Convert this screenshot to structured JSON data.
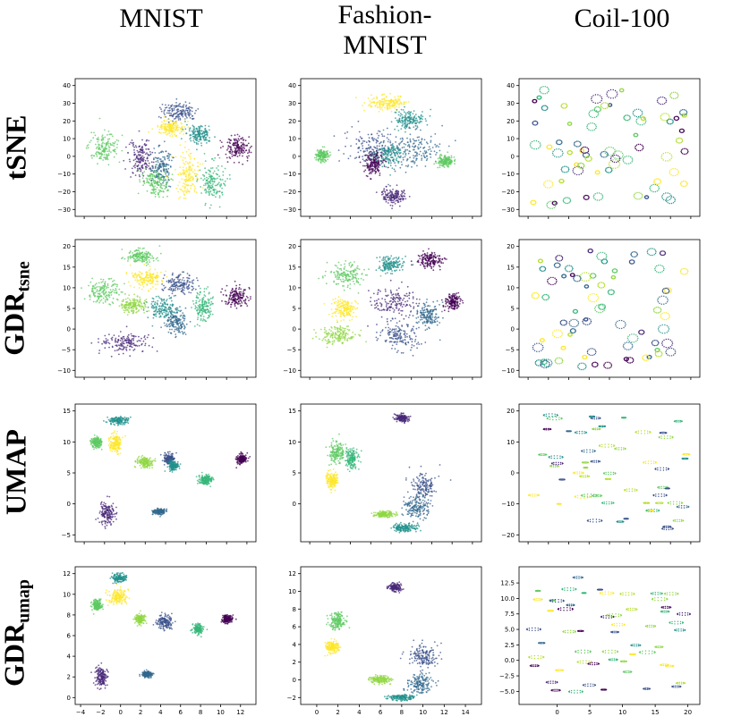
{
  "column_titles": [
    "MNIST",
    "Fashion-\nMNIST",
    "Coil-100"
  ],
  "row_labels": [
    {
      "main": "tSNE",
      "sub": ""
    },
    {
      "main": "GDR",
      "sub": "tsne"
    },
    {
      "main": "UMAP",
      "sub": ""
    },
    {
      "main": "GDR",
      "sub": "umap"
    }
  ],
  "colors": {
    "viridis": [
      "#440154",
      "#3b528b",
      "#21918c",
      "#5ec962",
      "#fde725",
      "#31688e",
      "#35b779",
      "#90d743",
      "#482878",
      "#b5de2b"
    ]
  },
  "chart_data": [
    {
      "type": "scatter",
      "row": 0,
      "col": 0,
      "ylim": [
        -30,
        40
      ],
      "yticks": [
        -30,
        -20,
        -10,
        0,
        10,
        20,
        30,
        40
      ],
      "xticks_labeled": false,
      "clusters": [
        {
          "x": 0.72,
          "y": 0.76,
          "rx": 0.14,
          "ry": 0.1,
          "c": 1
        },
        {
          "x": 0.66,
          "y": 0.64,
          "rx": 0.1,
          "ry": 0.07,
          "c": 4
        },
        {
          "x": 0.86,
          "y": 0.6,
          "rx": 0.1,
          "ry": 0.1,
          "c": 2
        },
        {
          "x": 0.2,
          "y": 0.5,
          "rx": 0.12,
          "ry": 0.15,
          "c": 3
        },
        {
          "x": 0.45,
          "y": 0.42,
          "rx": 0.09,
          "ry": 0.2,
          "c": 8
        },
        {
          "x": 0.6,
          "y": 0.36,
          "rx": 0.08,
          "ry": 0.2,
          "c": 5
        },
        {
          "x": 0.78,
          "y": 0.3,
          "rx": 0.09,
          "ry": 0.22,
          "c": 4
        },
        {
          "x": 0.95,
          "y": 0.25,
          "rx": 0.1,
          "ry": 0.2,
          "c": 6
        },
        {
          "x": 1.12,
          "y": 0.5,
          "rx": 0.1,
          "ry": 0.12,
          "c": 0
        },
        {
          "x": 0.55,
          "y": 0.25,
          "rx": 0.1,
          "ry": 0.15,
          "c": 3
        }
      ]
    },
    {
      "type": "scatter",
      "row": 0,
      "col": 1,
      "ylim": [
        -30,
        40
      ],
      "yticks": [
        -30,
        -20,
        -10,
        0,
        10,
        20,
        30,
        40
      ],
      "xticks_labeled": false,
      "clusters": [
        {
          "x": 0.6,
          "y": 0.82,
          "rx": 0.15,
          "ry": 0.08,
          "c": 4
        },
        {
          "x": 0.75,
          "y": 0.7,
          "rx": 0.12,
          "ry": 0.1,
          "c": 2
        },
        {
          "x": 0.5,
          "y": 0.5,
          "rx": 0.22,
          "ry": 0.18,
          "c": 1
        },
        {
          "x": 0.78,
          "y": 0.48,
          "rx": 0.2,
          "ry": 0.2,
          "c": 5
        },
        {
          "x": 0.6,
          "y": 0.45,
          "rx": 0.12,
          "ry": 0.12,
          "c": 2
        },
        {
          "x": 0.15,
          "y": 0.44,
          "rx": 0.05,
          "ry": 0.06,
          "c": 3
        },
        {
          "x": 1.0,
          "y": 0.4,
          "rx": 0.06,
          "ry": 0.06,
          "c": 3
        },
        {
          "x": 0.65,
          "y": 0.15,
          "rx": 0.1,
          "ry": 0.08,
          "c": 8
        },
        {
          "x": 0.5,
          "y": 0.38,
          "rx": 0.08,
          "ry": 0.12,
          "c": 0
        }
      ]
    },
    {
      "type": "scatter",
      "row": 0,
      "col": 2,
      "ylim": [
        -30,
        40
      ],
      "yticks": [
        -30,
        -20,
        -10,
        0,
        10,
        20,
        30,
        40
      ],
      "xticks_labeled": false,
      "rings": true
    },
    {
      "type": "scatter",
      "row": 1,
      "col": 0,
      "ylim": [
        -10,
        20
      ],
      "yticks": [
        -10,
        -5,
        0,
        5,
        10,
        15,
        20
      ],
      "xticks_labeled": false,
      "clusters": [
        {
          "x": 0.45,
          "y": 0.88,
          "rx": 0.12,
          "ry": 0.07,
          "c": 3
        },
        {
          "x": 0.5,
          "y": 0.72,
          "rx": 0.12,
          "ry": 0.1,
          "c": 4
        },
        {
          "x": 0.72,
          "y": 0.68,
          "rx": 0.12,
          "ry": 0.1,
          "c": 1
        },
        {
          "x": 0.2,
          "y": 0.62,
          "rx": 0.14,
          "ry": 0.12,
          "c": 3
        },
        {
          "x": 0.4,
          "y": 0.52,
          "rx": 0.1,
          "ry": 0.08,
          "c": 7
        },
        {
          "x": 0.6,
          "y": 0.5,
          "rx": 0.12,
          "ry": 0.12,
          "c": 2
        },
        {
          "x": 0.88,
          "y": 0.52,
          "rx": 0.08,
          "ry": 0.15,
          "c": 6
        },
        {
          "x": 1.12,
          "y": 0.58,
          "rx": 0.1,
          "ry": 0.1,
          "c": 0
        },
        {
          "x": 0.35,
          "y": 0.25,
          "rx": 0.2,
          "ry": 0.1,
          "c": 8
        },
        {
          "x": 0.7,
          "y": 0.4,
          "rx": 0.08,
          "ry": 0.12,
          "c": 5
        }
      ]
    },
    {
      "type": "scatter",
      "row": 1,
      "col": 1,
      "ylim": [
        -10,
        20
      ],
      "yticks": [
        -10,
        -5,
        0,
        5,
        10,
        15,
        20
      ],
      "xticks_labeled": false,
      "clusters": [
        {
          "x": 0.32,
          "y": 0.75,
          "rx": 0.15,
          "ry": 0.12,
          "c": 3
        },
        {
          "x": 0.62,
          "y": 0.82,
          "rx": 0.1,
          "ry": 0.08,
          "c": 2
        },
        {
          "x": 0.9,
          "y": 0.85,
          "rx": 0.1,
          "ry": 0.08,
          "c": 0
        },
        {
          "x": 0.3,
          "y": 0.5,
          "rx": 0.1,
          "ry": 0.1,
          "c": 4
        },
        {
          "x": 0.25,
          "y": 0.3,
          "rx": 0.14,
          "ry": 0.1,
          "c": 7
        },
        {
          "x": 0.65,
          "y": 0.55,
          "rx": 0.18,
          "ry": 0.16,
          "c": 8
        },
        {
          "x": 0.68,
          "y": 0.3,
          "rx": 0.15,
          "ry": 0.15,
          "c": 1
        },
        {
          "x": 0.88,
          "y": 0.45,
          "rx": 0.1,
          "ry": 0.12,
          "c": 5
        },
        {
          "x": 1.05,
          "y": 0.55,
          "rx": 0.06,
          "ry": 0.08,
          "c": 0
        }
      ]
    },
    {
      "type": "scatter",
      "row": 1,
      "col": 2,
      "ylim": [
        -10,
        20
      ],
      "yticks": [
        -10,
        -5,
        0,
        5,
        10,
        15,
        20
      ],
      "xticks_labeled": false,
      "rings": true
    },
    {
      "type": "scatter",
      "row": 2,
      "col": 0,
      "ylim": [
        -5,
        15
      ],
      "yticks": [
        -5,
        0,
        5,
        10,
        15
      ],
      "xticks_labeled": false,
      "clusters": [
        {
          "x": 0.15,
          "y": 0.72,
          "rx": 0.04,
          "ry": 0.06,
          "c": 3
        },
        {
          "x": 0.3,
          "y": 0.88,
          "rx": 0.08,
          "ry": 0.04,
          "c": 2
        },
        {
          "x": 0.28,
          "y": 0.72,
          "rx": 0.05,
          "ry": 0.1,
          "c": 4
        },
        {
          "x": 0.48,
          "y": 0.58,
          "rx": 0.06,
          "ry": 0.06,
          "c": 7
        },
        {
          "x": 0.65,
          "y": 0.6,
          "rx": 0.04,
          "ry": 0.06,
          "c": 1
        },
        {
          "x": 0.68,
          "y": 0.55,
          "rx": 0.04,
          "ry": 0.05,
          "c": 2
        },
        {
          "x": 0.9,
          "y": 0.45,
          "rx": 0.05,
          "ry": 0.05,
          "c": 6
        },
        {
          "x": 1.15,
          "y": 0.6,
          "rx": 0.04,
          "ry": 0.05,
          "c": 0
        },
        {
          "x": 0.58,
          "y": 0.22,
          "rx": 0.05,
          "ry": 0.03,
          "c": 5
        },
        {
          "x": 0.22,
          "y": 0.2,
          "rx": 0.06,
          "ry": 0.12,
          "c": 8
        }
      ]
    },
    {
      "type": "scatter",
      "row": 2,
      "col": 1,
      "ylim": [
        -5,
        15
      ],
      "yticks": [
        0,
        5,
        10,
        15
      ],
      "xticks_labeled": false,
      "clusters": [
        {
          "x": 0.25,
          "y": 0.65,
          "rx": 0.06,
          "ry": 0.12,
          "c": 3
        },
        {
          "x": 0.22,
          "y": 0.45,
          "rx": 0.05,
          "ry": 0.08,
          "c": 4
        },
        {
          "x": 0.35,
          "y": 0.6,
          "rx": 0.05,
          "ry": 0.1,
          "c": 6
        },
        {
          "x": 0.7,
          "y": 0.9,
          "rx": 0.05,
          "ry": 0.04,
          "c": 8
        },
        {
          "x": 0.85,
          "y": 0.4,
          "rx": 0.1,
          "ry": 0.15,
          "c": 1
        },
        {
          "x": 0.8,
          "y": 0.25,
          "rx": 0.1,
          "ry": 0.12,
          "c": 5
        },
        {
          "x": 0.58,
          "y": 0.2,
          "rx": 0.08,
          "ry": 0.03,
          "c": 7
        },
        {
          "x": 0.72,
          "y": 0.1,
          "rx": 0.1,
          "ry": 0.04,
          "c": 2
        }
      ]
    },
    {
      "type": "scatter",
      "row": 2,
      "col": 2,
      "ylim": [
        -20,
        20
      ],
      "yticks": [
        -20,
        -10,
        0,
        10,
        20
      ],
      "xticks_labeled": false,
      "rings": false
    },
    {
      "type": "scatter",
      "row": 3,
      "col": 0,
      "xlim": [
        -4,
        13
      ],
      "ylim": [
        0,
        12
      ],
      "yticks": [
        0,
        2,
        4,
        6,
        8,
        10,
        12
      ],
      "xticks": [
        -4,
        -2,
        0,
        2,
        4,
        6,
        8,
        10,
        12
      ],
      "xticks_labeled": true,
      "clusters": [
        {
          "x": 0.15,
          "y": 0.72,
          "rx": 0.04,
          "ry": 0.06,
          "c": 3
        },
        {
          "x": 0.3,
          "y": 0.92,
          "rx": 0.06,
          "ry": 0.04,
          "c": 2
        },
        {
          "x": 0.3,
          "y": 0.78,
          "rx": 0.08,
          "ry": 0.08,
          "c": 4
        },
        {
          "x": 0.45,
          "y": 0.62,
          "rx": 0.04,
          "ry": 0.05,
          "c": 7
        },
        {
          "x": 0.62,
          "y": 0.6,
          "rx": 0.06,
          "ry": 0.07,
          "c": 1
        },
        {
          "x": 0.85,
          "y": 0.55,
          "rx": 0.04,
          "ry": 0.05,
          "c": 6
        },
        {
          "x": 1.05,
          "y": 0.62,
          "rx": 0.04,
          "ry": 0.04,
          "c": 0
        },
        {
          "x": 0.5,
          "y": 0.22,
          "rx": 0.04,
          "ry": 0.03,
          "c": 5
        },
        {
          "x": 0.18,
          "y": 0.2,
          "rx": 0.05,
          "ry": 0.1,
          "c": 8
        }
      ]
    },
    {
      "type": "scatter",
      "row": 3,
      "col": 1,
      "xlim": [
        -1,
        15
      ],
      "ylim": [
        -2,
        12
      ],
      "yticks": [
        -2,
        0,
        2,
        4,
        6,
        8,
        10,
        12
      ],
      "xticks": [
        0,
        2,
        4,
        6,
        8,
        10,
        12,
        14
      ],
      "xticks_labeled": true,
      "clusters": [
        {
          "x": 0.25,
          "y": 0.6,
          "rx": 0.06,
          "ry": 0.1,
          "c": 3
        },
        {
          "x": 0.22,
          "y": 0.42,
          "rx": 0.05,
          "ry": 0.06,
          "c": 4
        },
        {
          "x": 0.65,
          "y": 0.85,
          "rx": 0.05,
          "ry": 0.04,
          "c": 8
        },
        {
          "x": 0.85,
          "y": 0.35,
          "rx": 0.12,
          "ry": 0.12,
          "c": 1
        },
        {
          "x": 0.82,
          "y": 0.15,
          "rx": 0.1,
          "ry": 0.1,
          "c": 5
        },
        {
          "x": 0.55,
          "y": 0.18,
          "rx": 0.08,
          "ry": 0.04,
          "c": 7
        },
        {
          "x": 0.7,
          "y": 0.05,
          "rx": 0.1,
          "ry": 0.03,
          "c": 2
        }
      ]
    },
    {
      "type": "scatter",
      "row": 3,
      "col": 2,
      "xlim": [
        -5,
        21
      ],
      "ylim": [
        -6,
        14
      ],
      "yticks": [
        -5.0,
        -2.5,
        0.0,
        2.5,
        5.0,
        7.5,
        10.0,
        12.5
      ],
      "ytick_labels": [
        "−5.0",
        "−2.5",
        "0.0",
        "2.5",
        "5.0",
        "7.5",
        "10.0",
        "12.5"
      ],
      "xticks": [
        0,
        5,
        10,
        15,
        20
      ],
      "xticks_labeled": true,
      "rings": false
    }
  ]
}
